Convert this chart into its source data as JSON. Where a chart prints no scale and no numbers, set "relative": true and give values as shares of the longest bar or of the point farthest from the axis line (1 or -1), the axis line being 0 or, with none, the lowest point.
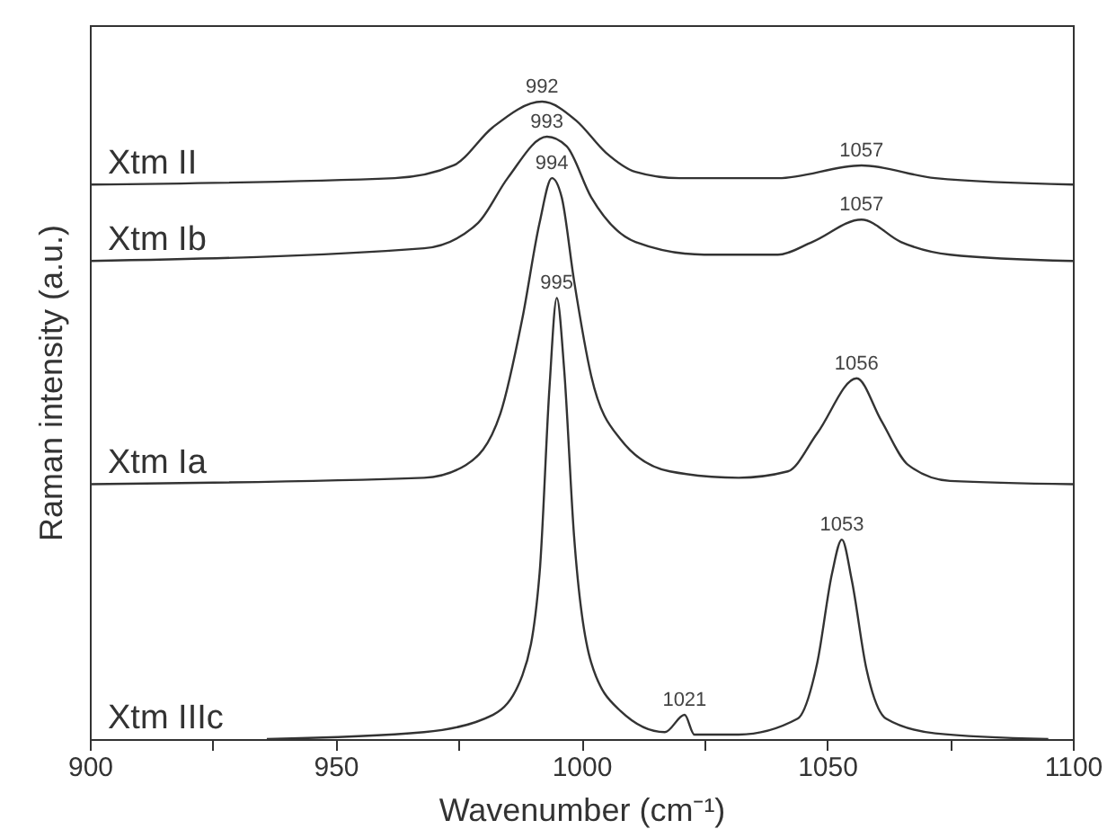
{
  "chart_data": {
    "type": "line",
    "relative": true,
    "xlabel": "Wavenumber (cm⁻¹)",
    "ylabel": "Raman intensity (a.u.)",
    "xlim": [
      900,
      1100
    ],
    "xticks": [
      900,
      {
        "value": 925,
        "label": null
      },
      950,
      {
        "value": 975,
        "label": null
      },
      1000,
      {
        "value": 1025,
        "label": null
      },
      1050,
      {
        "value": 1075,
        "label": null
      },
      1100
    ],
    "line_style": "solid",
    "marker": "none",
    "series": [
      {
        "name": "Xtm II",
        "color": "#333333",
        "x": [
          900,
          962,
          974,
          982,
          992,
          999,
          1005,
          1011,
          1020,
          1040,
          1057,
          1072,
          1100
        ],
        "values": [
          0.87,
          0.88,
          0.9,
          0.96,
          1,
          0.97,
          0.92,
          0.89,
          0.88,
          0.88,
          0.9,
          0.88,
          0.87
        ]
      },
      {
        "name": "Xtm Ib",
        "color": "#333333",
        "x": [
          900,
          968,
          979,
          985,
          993,
          997,
          1002,
          1011,
          1025,
          1040,
          1047,
          1057,
          1065,
          1075,
          1100
        ],
        "values": [
          0.75,
          0.77,
          0.81,
          0.88,
          0.945,
          0.93,
          0.85,
          0.78,
          0.76,
          0.76,
          0.78,
          0.815,
          0.78,
          0.76,
          0.75
        ]
      },
      {
        "name": "Xtm Ia",
        "color": "#333333",
        "x": [
          900,
          968,
          976.5,
          983.5,
          988,
          991.5,
          994,
          996,
          998.5,
          1002,
          1008,
          1018,
          1032,
          1042,
          1048,
          1056,
          1061,
          1066.5,
          1075,
          1100
        ],
        "values": [
          0.4,
          0.41,
          0.43,
          0.51,
          0.66,
          0.81,
          0.88,
          0.85,
          0.72,
          0.57,
          0.47,
          0.42,
          0.41,
          0.42,
          0.48,
          0.566,
          0.5,
          0.43,
          0.405,
          0.4
        ]
      },
      {
        "name": "Xtm IIIc",
        "color": "#333333",
        "x": [
          936,
          968,
          982,
          988,
          991.5,
          993.5,
          995,
          996.5,
          998.5,
          1002,
          1008,
          1017,
          1021,
          1023,
          1032,
          1044,
          1048,
          1051,
          1053,
          1055,
          1058,
          1062,
          1072,
          1095
        ],
        "values": [
          0,
          0.011,
          0.038,
          0.1,
          0.26,
          0.55,
          0.692,
          0.58,
          0.32,
          0.12,
          0.044,
          0.011,
          0.038,
          0.007,
          0.007,
          0.032,
          0.12,
          0.26,
          0.313,
          0.25,
          0.11,
          0.032,
          0.009,
          0
        ]
      }
    ],
    "annotations": [
      {
        "text": "992",
        "x": 992,
        "y": 1
      },
      {
        "text": "993",
        "x": 993,
        "y": 0.945
      },
      {
        "text": "994",
        "x": 994,
        "y": 0.88
      },
      {
        "text": "995",
        "x": 995,
        "y": 0.692
      },
      {
        "text": "1057",
        "x": 1057,
        "y": 0.9
      },
      {
        "text": "1057",
        "x": 1057,
        "y": 0.815
      },
      {
        "text": "1056",
        "x": 1056,
        "y": 0.566
      },
      {
        "text": "1053",
        "x": 1053,
        "y": 0.313
      },
      {
        "text": "1021",
        "x": 1021,
        "y": 0.038
      }
    ]
  }
}
